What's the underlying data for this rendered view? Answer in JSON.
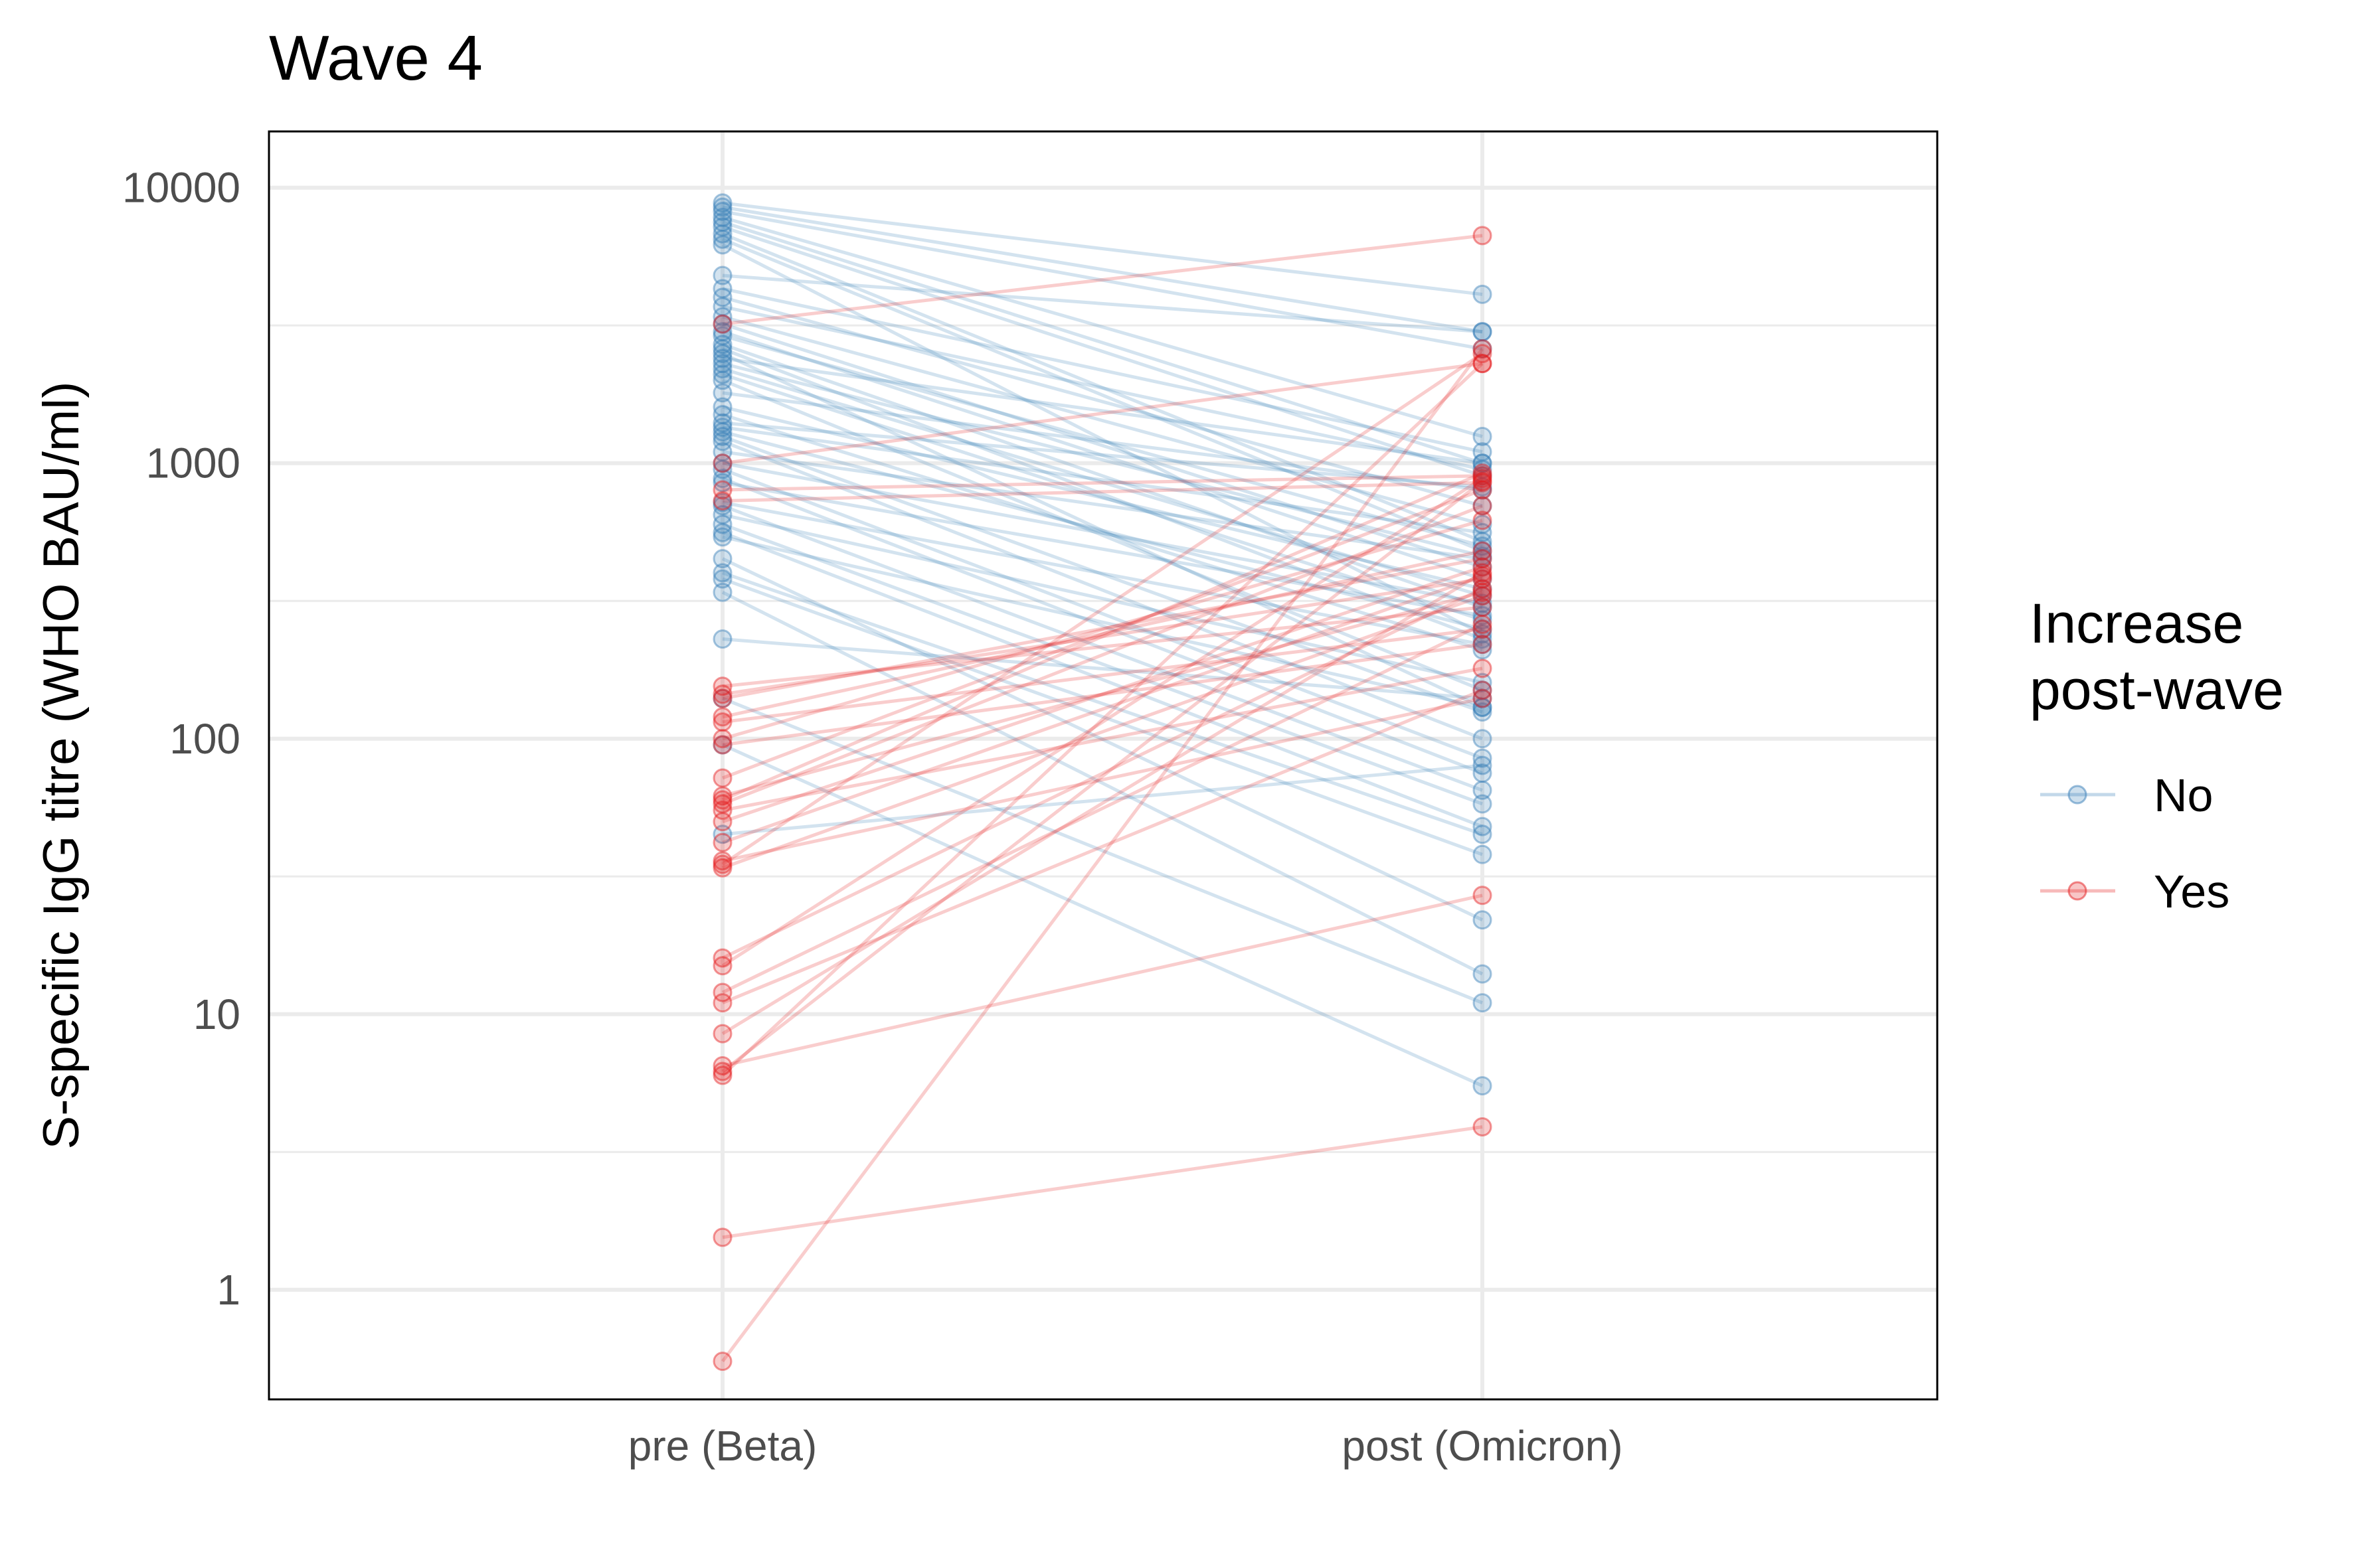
{
  "colors": {
    "No": "#377eb8",
    "Yes": "#e41a1c",
    "grid": "#ebebeb",
    "tick_text": "#4d4d4d"
  },
  "chart_data": {
    "type": "line",
    "title": "Wave 4",
    "xlabel": "",
    "ylabel": "S-specific IgG titre (WHO BAU/ml)",
    "y_scale": "log10",
    "ylim": [
      0.4,
      16000
    ],
    "yticks": [
      1,
      10,
      100,
      1000,
      10000
    ],
    "ytick_labels": [
      "1",
      "10",
      "100",
      "1000",
      "10000"
    ],
    "categories": [
      "pre (Beta)",
      "post (Omicron)"
    ],
    "grid": true,
    "legend": {
      "title_lines": [
        "Increase",
        "post-wave"
      ],
      "position": "right",
      "entries": [
        "No",
        "Yes"
      ]
    },
    "series": [
      {
        "name": "No",
        "pairs": [
          [
            8800,
            4100
          ],
          [
            8500,
            3000
          ],
          [
            8200,
            2600
          ],
          [
            7800,
            1250
          ],
          [
            7500,
            1000
          ],
          [
            7200,
            900
          ],
          [
            6800,
            520
          ],
          [
            6500,
            480
          ],
          [
            6200,
            240
          ],
          [
            4800,
            3000
          ],
          [
            4300,
            1100
          ],
          [
            4000,
            700
          ],
          [
            3700,
            950
          ],
          [
            3400,
            600
          ],
          [
            3200,
            420
          ],
          [
            3000,
            380
          ],
          [
            2900,
            500
          ],
          [
            2700,
            300
          ],
          [
            2600,
            230
          ],
          [
            2500,
            130
          ],
          [
            2400,
            1000
          ],
          [
            2300,
            460
          ],
          [
            2200,
            330
          ],
          [
            2100,
            270
          ],
          [
            2000,
            150
          ],
          [
            1800,
            800
          ],
          [
            1600,
            350
          ],
          [
            1500,
            210
          ],
          [
            1400,
            820
          ],
          [
            1350,
            560
          ],
          [
            1300,
            250
          ],
          [
            1250,
            125
          ],
          [
            1200,
            100
          ],
          [
            1100,
            450
          ],
          [
            1000,
            310
          ],
          [
            950,
            85
          ],
          [
            880,
            75
          ],
          [
            850,
            280
          ],
          [
            720,
            220
          ],
          [
            700,
            65
          ],
          [
            650,
            160
          ],
          [
            600,
            58
          ],
          [
            560,
            48
          ],
          [
            540,
            130
          ],
          [
            450,
            22
          ],
          [
            400,
            45
          ],
          [
            380,
            38
          ],
          [
            340,
            14
          ],
          [
            230,
            140
          ],
          [
            140,
            11
          ],
          [
            95,
            5.5
          ],
          [
            45,
            80
          ]
        ]
      },
      {
        "name": "Yes",
        "pairs": [
          [
            3200,
            6700
          ],
          [
            1000,
            2300
          ],
          [
            800,
            900
          ],
          [
            730,
            850
          ],
          [
            155,
            300
          ],
          [
            145,
            380
          ],
          [
            140,
            450
          ],
          [
            120,
            480
          ],
          [
            115,
            250
          ],
          [
            100,
            620
          ],
          [
            95,
            220
          ],
          [
            72,
            800
          ],
          [
            62,
            340
          ],
          [
            60,
            920
          ],
          [
            58,
            700
          ],
          [
            55,
            180
          ],
          [
            50,
            420
          ],
          [
            42,
            390
          ],
          [
            36,
            140
          ],
          [
            35,
            2500
          ],
          [
            34,
            330
          ],
          [
            16,
            350
          ],
          [
            15,
            880
          ],
          [
            12,
            260
          ],
          [
            11,
            150
          ],
          [
            8.5,
            400
          ],
          [
            6.5,
            27
          ],
          [
            6.2,
            860
          ],
          [
            6,
            2300
          ],
          [
            1.55,
            3.9
          ],
          [
            0.55,
            2600
          ]
        ]
      }
    ]
  }
}
